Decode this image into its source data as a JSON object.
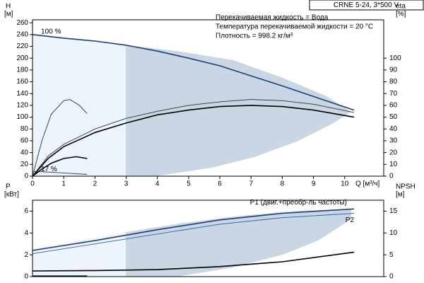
{
  "chart_data": [
    {
      "type": "line",
      "title": "CRNE 5-24, 3*500 V",
      "annotations": [
        "Перекачиваемая жидкость = Вода",
        "Температура перекачиваемой жидкости = 20 °C",
        "Плотность = 998.2 кг/м³"
      ],
      "ylabel": "H",
      "yunit": "[м]",
      "y2label": "eta",
      "y2unit": "[%]",
      "xlabel": "Q [м³/ч]",
      "xlim": [
        0,
        11.25
      ],
      "xticks": [
        0,
        1,
        2,
        3,
        4,
        5,
        6,
        7,
        8,
        9,
        10
      ],
      "ylim": [
        0,
        265
      ],
      "yticks": [
        0,
        20,
        40,
        60,
        80,
        100,
        120,
        140,
        160,
        180,
        200,
        220,
        240,
        260
      ],
      "y2lim": [
        0,
        132.5
      ],
      "y2ticks": [
        0,
        10,
        20,
        30,
        40,
        50,
        60,
        70,
        80,
        90,
        100
      ],
      "series": [
        {
          "name": "100 %",
          "color": "#1f3d7a",
          "x": [
            0,
            1,
            2,
            3,
            4,
            5,
            6,
            7,
            8,
            9,
            10.3
          ],
          "values": [
            240,
            234,
            229,
            222,
            212,
            200,
            187,
            170,
            153,
            135,
            112
          ]
        },
        {
          "color": "#333333",
          "axis": "y2",
          "x": [
            0,
            0.5,
            1,
            2,
            3,
            4,
            5,
            6,
            7,
            8,
            9,
            10.3
          ],
          "values": [
            0,
            17,
            27,
            40,
            49,
            55,
            60,
            63,
            65,
            64,
            61,
            54
          ]
        },
        {
          "color": "#000000",
          "axis": "y2",
          "x": [
            0,
            0.5,
            1,
            2,
            3,
            4,
            5,
            6,
            7,
            8,
            9,
            10.3
          ],
          "values": [
            0,
            15,
            25,
            37,
            45,
            52,
            56,
            59,
            60,
            59,
            56,
            50
          ]
        },
        {
          "name": "17 %",
          "color": "#1f3d7a",
          "x": [
            0,
            0.5,
            1,
            1.75
          ],
          "values": [
            8,
            7,
            5.5,
            3
          ]
        },
        {
          "color": "#333333",
          "axis": "y2",
          "x": [
            0,
            0.3,
            0.6,
            1,
            1.2,
            1.5,
            1.75
          ],
          "values": [
            0,
            30,
            52.5,
            64,
            65,
            60,
            53
          ]
        },
        {
          "color": "#000000",
          "axis": "y2",
          "x": [
            0,
            0.3,
            0.6,
            1,
            1.4,
            1.75
          ],
          "values": [
            0,
            6,
            11,
            15,
            16.5,
            15
          ]
        }
      ]
    },
    {
      "type": "line",
      "ylabel": "P",
      "yunit": "[кВт]",
      "y2label": "NPSH",
      "y2unit": "[м]",
      "xlim": [
        0,
        11.25
      ],
      "ylim": [
        0,
        7
      ],
      "yticks": [
        0,
        2,
        4,
        6
      ],
      "y2lim": [
        0,
        17.5
      ],
      "y2ticks": [
        0,
        5,
        10,
        15
      ],
      "series": [
        {
          "name": "P1 (двиг.+преобр-ль частоты)",
          "color": "#1f3d7a",
          "x": [
            0,
            2,
            4,
            6,
            8,
            10.3
          ],
          "values": [
            2.4,
            3.3,
            4.3,
            5.2,
            5.8,
            6.2
          ]
        },
        {
          "name": "P2",
          "color": "#2f5fa8",
          "x": [
            0,
            2,
            4,
            6,
            8,
            10.3
          ],
          "values": [
            2.1,
            3.0,
            3.9,
            4.8,
            5.4,
            5.8
          ]
        },
        {
          "color": "#000000",
          "axis": "y2",
          "x": [
            0,
            2,
            4,
            6,
            8,
            10.3
          ],
          "values": [
            1.3,
            1.4,
            1.6,
            2.3,
            3.4,
            5.6
          ]
        },
        {
          "color": "#000000",
          "x": [
            0,
            1.75
          ],
          "values": [
            0.05,
            0.05
          ]
        }
      ]
    }
  ]
}
